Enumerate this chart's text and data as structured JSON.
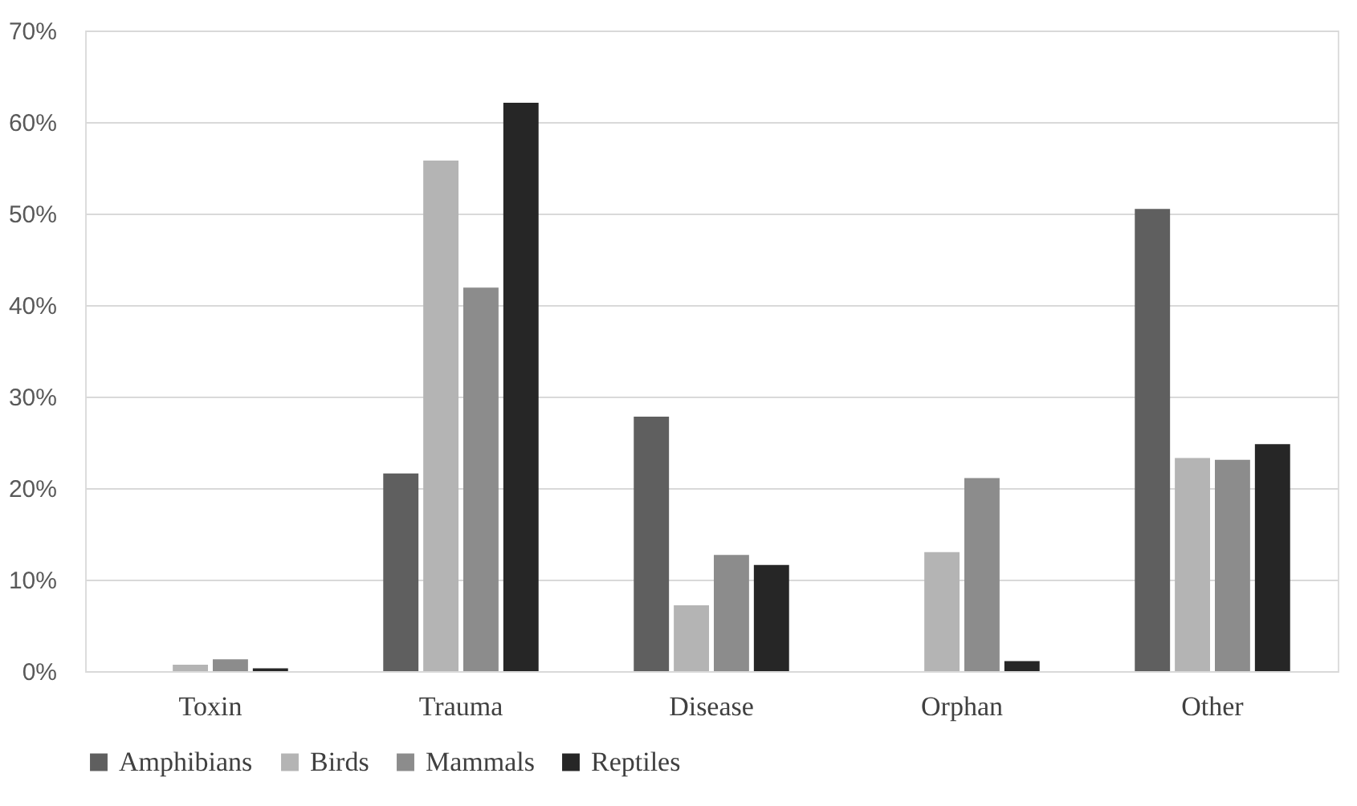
{
  "chart_data": {
    "type": "bar",
    "categories": [
      "Toxin",
      "Trauma",
      "Disease",
      "Orphan",
      "Other"
    ],
    "series": [
      {
        "name": "Amphibians",
        "color": "#5f5f5f",
        "values": [
          0,
          21.6,
          27.8,
          0,
          50.5
        ]
      },
      {
        "name": "Birds",
        "color": "#b4b4b4",
        "values": [
          0.7,
          55.8,
          7.2,
          13.0,
          23.3
        ]
      },
      {
        "name": "Mammals",
        "color": "#8c8c8c",
        "values": [
          1.3,
          41.9,
          12.7,
          21.1,
          23.1
        ]
      },
      {
        "name": "Reptiles",
        "color": "#262626",
        "values": [
          0.3,
          62.1,
          11.6,
          1.1,
          24.8
        ]
      }
    ],
    "ylim": [
      0,
      70
    ],
    "yticks": [
      {
        "value": 0,
        "label": "0%"
      },
      {
        "value": 10,
        "label": "10%"
      },
      {
        "value": 20,
        "label": "20%"
      },
      {
        "value": 30,
        "label": "30%"
      },
      {
        "value": 40,
        "label": "40%"
      },
      {
        "value": 50,
        "label": "50%"
      },
      {
        "value": 60,
        "label": "60%"
      },
      {
        "value": 70,
        "label": "70%"
      }
    ],
    "grid": "y",
    "legend": "bottom"
  }
}
